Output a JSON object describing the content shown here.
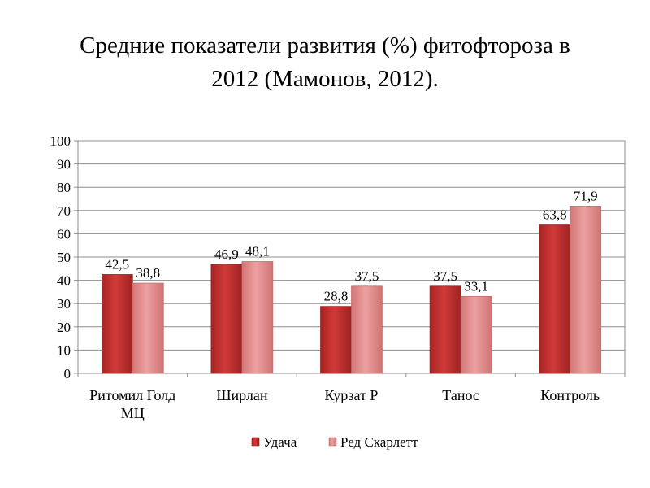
{
  "title_line1": "Средние показатели развития (%) фитофтороза в",
  "title_line2": "2012 (Мамонов, 2012).",
  "chart_data": {
    "type": "bar",
    "title": "Средние показатели развития (%) фитофтороза в 2012 (Мамонов, 2012).",
    "categories": [
      [
        "Ритомил Голд",
        "МЦ"
      ],
      [
        "Ширлан"
      ],
      [
        "Курзат Р"
      ],
      [
        "Танос"
      ],
      [
        "Контроль"
      ]
    ],
    "series": [
      {
        "name": "Удача",
        "values": [
          42.5,
          46.9,
          28.8,
          37.5,
          63.8
        ],
        "labels": [
          "42,5",
          "46,9",
          "28,8",
          "37,5",
          "63,8"
        ],
        "color": "#c0302f"
      },
      {
        "name": "Ред Скарлетт",
        "values": [
          38.8,
          48.1,
          37.5,
          33.1,
          71.9
        ],
        "labels": [
          "38,8",
          "48,1",
          "37,5",
          "33,1",
          "71,9"
        ],
        "color": "#e08a8a"
      }
    ],
    "ylim": [
      0,
      100
    ],
    "yticks": [
      0,
      10,
      20,
      30,
      40,
      50,
      60,
      70,
      80,
      90,
      100
    ],
    "grid": true,
    "legend": "bottom"
  }
}
